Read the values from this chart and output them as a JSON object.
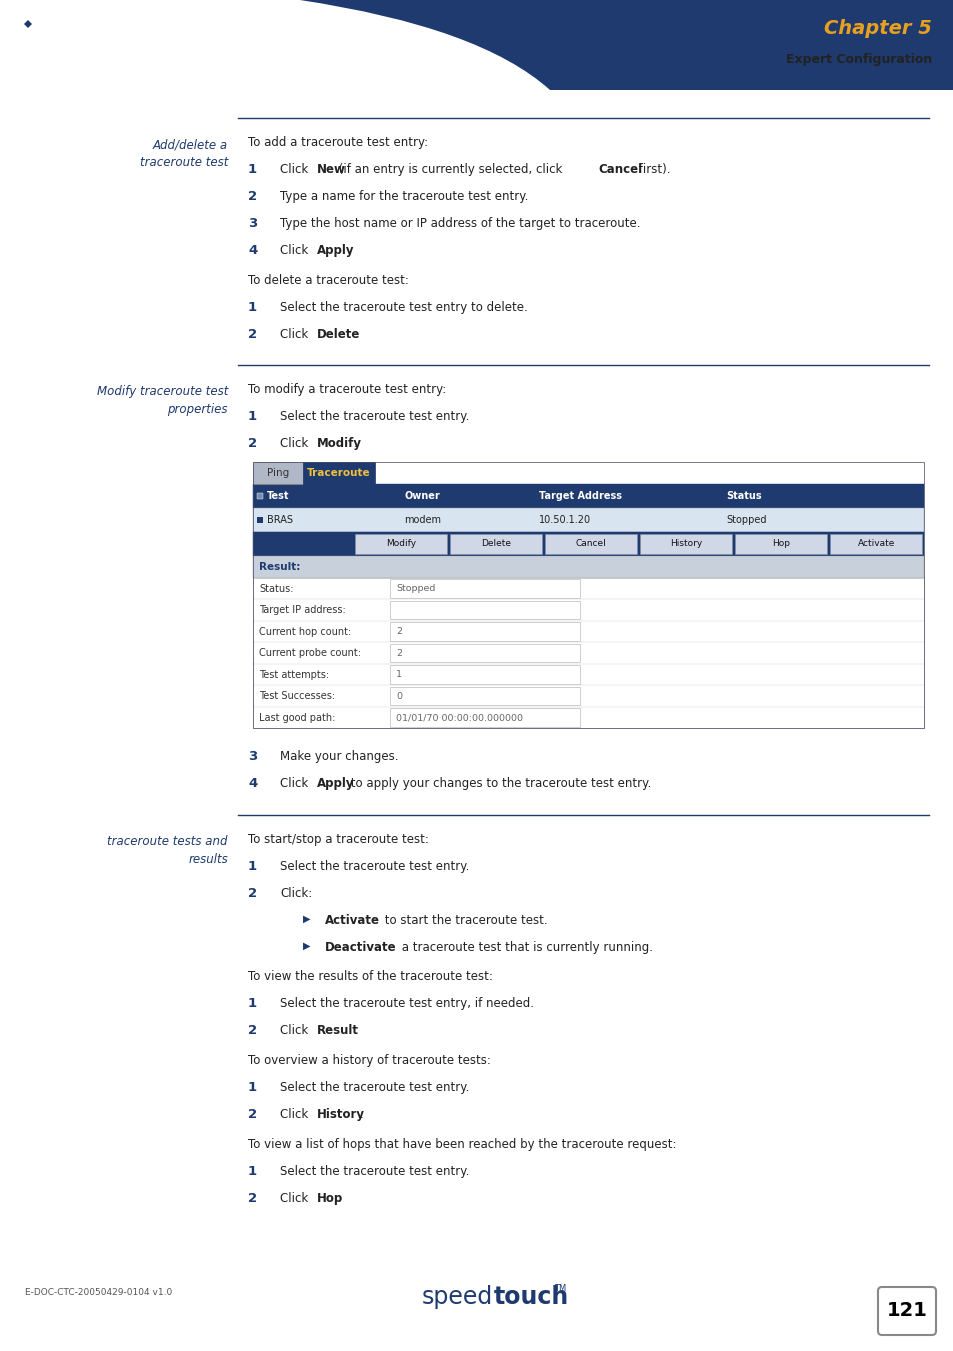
{
  "page_width": 9.54,
  "page_height": 13.51,
  "bg_color": "#ffffff",
  "header_bg": "#1e3a6e",
  "header_chapter": "Chapter 5",
  "header_chapter_color": "#e8a020",
  "header_sub": "Expert Configuration",
  "header_sub_color": "#222222",
  "footer_left": "E-DOC-CTC-20050429-0104 v1.0",
  "footer_page": "121",
  "section1_label": "Add/delete a\ntraceroute test",
  "section2_label": "Modify traceroute test\nproperties",
  "section3_label": "traceroute tests and\nresults",
  "section_label_color": "#1e3a6e",
  "divider_color": "#1e3a6e",
  "step_number_color": "#1e3a6e",
  "body_color": "#222222",
  "table_header_bg": "#1e3a6e",
  "tab_ping_bg": "#b0b8c8",
  "tab_traceroute_bg": "#1e3a6e",
  "result_header_bg": "#c8d0dc",
  "result_row_bg": "#f4f6f8",
  "bullet_color": "#1e3a6e"
}
